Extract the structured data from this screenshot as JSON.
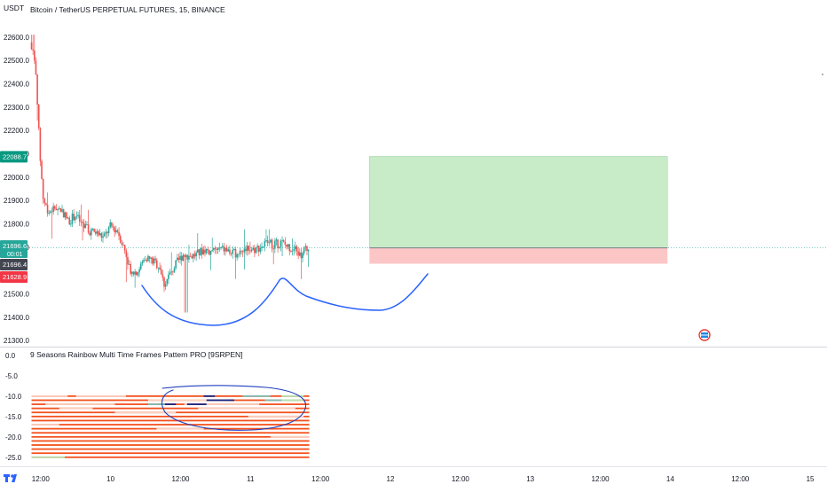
{
  "header": {
    "currency": "USDT",
    "symbol_title": "Bitcoin / TetherUS PERPETUAL FUTURES, 15, BINANCE"
  },
  "indicator": {
    "title": "9 Seasons Rainbow Multi Time Frames Pattern PRO [9SRPEN]"
  },
  "price_badges": [
    {
      "label": "22088.7",
      "value": 22088.7,
      "color": "#089981"
    },
    {
      "label": "21696.6",
      "sub": "00:01",
      "value": 21696.6,
      "color": "#26a69a"
    },
    {
      "label": "21696.4",
      "value": 21696.4,
      "color": "#434651"
    },
    {
      "label": "21628.9",
      "value": 21628.9,
      "color": "#f23645"
    }
  ],
  "colors": {
    "up": "#26a69a",
    "down": "#ef5350",
    "profit_zone": "#c8ebc8",
    "loss_zone": "#fcc6c6",
    "drawing": "#2962ff",
    "drawing_dark": "#1f3fbf",
    "ribbon_red": "#f4511e",
    "ribbon_light": "#fbd0c0",
    "ribbon_navy": "#1a237e",
    "ribbon_teal": "#7fbcb5",
    "ribbon_green": "#b7e1b0"
  },
  "chart_data": [
    {
      "type": "candlestick",
      "title": "Bitcoin / TetherUS PERPETUAL FUTURES, 15, BINANCE",
      "y_axis_ticks": [
        "22600.0",
        "22500.0",
        "22400.0",
        "22300.0",
        "22200.0",
        "22100.0",
        "22000.0",
        "21900.0",
        "21800.0",
        "21700.0",
        "21500.0",
        "21400.0",
        "21300.0"
      ],
      "ylim": [
        21270,
        22660
      ],
      "x_axis_ticks": [
        "12:00",
        "10",
        "12:00",
        "11",
        "12:00",
        "12",
        "12:00",
        "13",
        "12:00",
        "14",
        "12:00",
        "15"
      ],
      "x_range_days": [
        9.4,
        15.12
      ],
      "price_keypoints": [
        [
          9.43,
          22550
        ],
        [
          9.45,
          22540
        ],
        [
          9.47,
          22430
        ],
        [
          9.48,
          22270
        ],
        [
          9.5,
          22050
        ],
        [
          9.52,
          21900
        ],
        [
          9.56,
          21850
        ],
        [
          9.6,
          21870
        ],
        [
          9.65,
          21860
        ],
        [
          9.7,
          21810
        ],
        [
          9.75,
          21840
        ],
        [
          9.8,
          21790
        ],
        [
          9.85,
          21770
        ],
        [
          9.9,
          21760
        ],
        [
          9.95,
          21740
        ],
        [
          10.0,
          21790
        ],
        [
          10.05,
          21770
        ],
        [
          10.1,
          21690
        ],
        [
          10.15,
          21590
        ],
        [
          10.2,
          21600
        ],
        [
          10.25,
          21660
        ],
        [
          10.3,
          21640
        ],
        [
          10.35,
          21620
        ],
        [
          10.38,
          21540
        ],
        [
          10.42,
          21580
        ],
        [
          10.47,
          21630
        ],
        [
          10.52,
          21670
        ],
        [
          10.57,
          21660
        ],
        [
          10.62,
          21670
        ],
        [
          10.67,
          21690
        ],
        [
          10.72,
          21680
        ],
        [
          10.77,
          21690
        ],
        [
          10.82,
          21690
        ],
        [
          10.87,
          21670
        ],
        [
          10.92,
          21680
        ],
        [
          10.97,
          21700
        ],
        [
          11.02,
          21690
        ],
        [
          11.07,
          21700
        ],
        [
          11.12,
          21720
        ],
        [
          11.17,
          21710
        ],
        [
          11.22,
          21720
        ],
        [
          11.27,
          21700
        ],
        [
          11.32,
          21690
        ],
        [
          11.36,
          21660
        ],
        [
          11.39,
          21690
        ],
        [
          11.42,
          21696
        ]
      ],
      "last_price": 21696.6,
      "session_low": 21420,
      "session_high": 22610
    },
    {
      "type": "position",
      "entry": 21696.6,
      "target": 22088.7,
      "stop": 21628.9,
      "start": 11.85,
      "end": 13.98
    },
    {
      "type": "ribbon-heatmap",
      "title": "9 Seasons Rainbow Multi Time Frames Pattern PRO [9SRPEN]",
      "y_axis_ticks": [
        "0.0",
        "-5.0",
        "-10.0",
        "-15.0",
        "-20.0",
        "-25.0"
      ],
      "ylim": [
        -27,
        1.5
      ]
    }
  ],
  "footer": {
    "tv_logo": "tv-logo-icon"
  }
}
